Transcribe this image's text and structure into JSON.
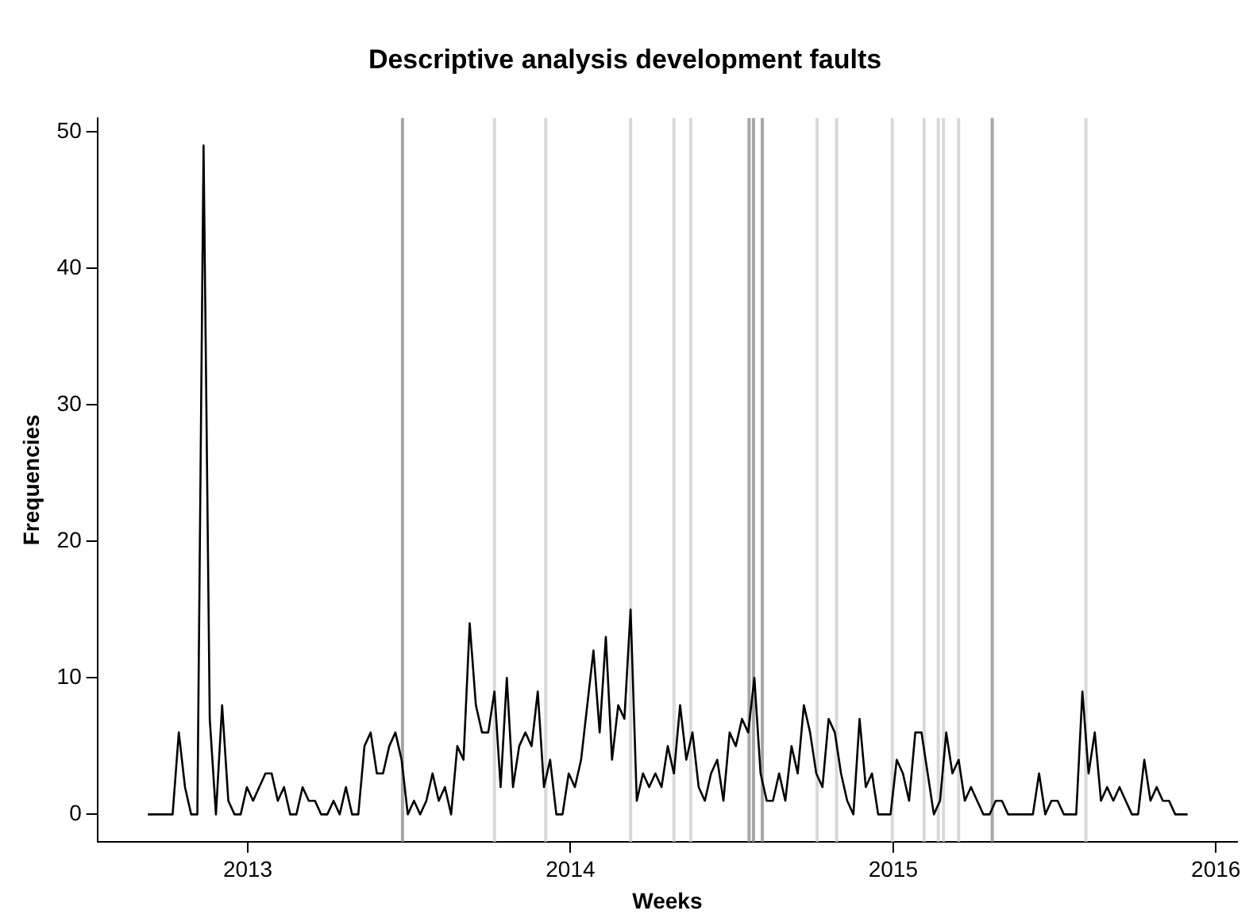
{
  "chart_data": {
    "type": "line",
    "title": "Descriptive analysis development faults",
    "xlabel": "Weeks",
    "ylabel": "Frequencies",
    "x": [
      "2012-09-10",
      "2012-09-17",
      "2012-09-24",
      "2012-10-01",
      "2012-10-08",
      "2012-10-15",
      "2012-10-22",
      "2012-10-29",
      "2012-11-05",
      "2012-11-12",
      "2012-11-19",
      "2012-11-26",
      "2012-12-03",
      "2012-12-10",
      "2012-12-17",
      "2012-12-24",
      "2012-12-31",
      "2013-01-07",
      "2013-01-14",
      "2013-01-21",
      "2013-01-28",
      "2013-02-04",
      "2013-02-11",
      "2013-02-18",
      "2013-02-25",
      "2013-03-04",
      "2013-03-11",
      "2013-03-18",
      "2013-03-25",
      "2013-04-01",
      "2013-04-08",
      "2013-04-15",
      "2013-04-22",
      "2013-04-29",
      "2013-05-06",
      "2013-05-13",
      "2013-05-20",
      "2013-05-27",
      "2013-06-03",
      "2013-06-10",
      "2013-06-17",
      "2013-06-24",
      "2013-07-01",
      "2013-07-08",
      "2013-07-15",
      "2013-07-22",
      "2013-07-29",
      "2013-08-05",
      "2013-08-12",
      "2013-08-19",
      "2013-08-26",
      "2013-09-02",
      "2013-09-09",
      "2013-09-16",
      "2013-09-23",
      "2013-09-30",
      "2013-10-07",
      "2013-10-14",
      "2013-10-21",
      "2013-10-28",
      "2013-11-04",
      "2013-11-11",
      "2013-11-18",
      "2013-11-25",
      "2013-12-02",
      "2013-12-09",
      "2013-12-16",
      "2013-12-23",
      "2013-12-30",
      "2014-01-06",
      "2014-01-13",
      "2014-01-20",
      "2014-01-27",
      "2014-02-03",
      "2014-02-10",
      "2014-02-17",
      "2014-02-24",
      "2014-03-03",
      "2014-03-10",
      "2014-03-17",
      "2014-03-24",
      "2014-03-31",
      "2014-04-07",
      "2014-04-14",
      "2014-04-21",
      "2014-04-28",
      "2014-05-05",
      "2014-05-12",
      "2014-05-19",
      "2014-05-26",
      "2014-06-02",
      "2014-06-09",
      "2014-06-16",
      "2014-06-23",
      "2014-06-30",
      "2014-07-07",
      "2014-07-14",
      "2014-07-21",
      "2014-07-28",
      "2014-08-04",
      "2014-08-11",
      "2014-08-18",
      "2014-08-25",
      "2014-09-01",
      "2014-09-08",
      "2014-09-15",
      "2014-09-22",
      "2014-09-29",
      "2014-10-06",
      "2014-10-13",
      "2014-10-20",
      "2014-10-27",
      "2014-11-03",
      "2014-11-10",
      "2014-11-17",
      "2014-11-24",
      "2014-12-01",
      "2014-12-08",
      "2014-12-15",
      "2014-12-22",
      "2014-12-29",
      "2015-01-05",
      "2015-01-12",
      "2015-01-19",
      "2015-01-26",
      "2015-02-02",
      "2015-02-09",
      "2015-02-16",
      "2015-02-23",
      "2015-03-02",
      "2015-03-09",
      "2015-03-16",
      "2015-03-23",
      "2015-03-30",
      "2015-04-06",
      "2015-04-13",
      "2015-04-20",
      "2015-04-27",
      "2015-05-04",
      "2015-05-11",
      "2015-05-18",
      "2015-05-25",
      "2015-06-01",
      "2015-06-08",
      "2015-06-15",
      "2015-06-22",
      "2015-06-29",
      "2015-07-06",
      "2015-07-13",
      "2015-07-20",
      "2015-07-27",
      "2015-08-03",
      "2015-08-10",
      "2015-08-17",
      "2015-08-24",
      "2015-08-31",
      "2015-09-07",
      "2015-09-14",
      "2015-09-21",
      "2015-09-28",
      "2015-10-05",
      "2015-10-12",
      "2015-10-19",
      "2015-10-26",
      "2015-11-02",
      "2015-11-09",
      "2015-11-16",
      "2015-11-23",
      "2015-11-30"
    ],
    "values": [
      0,
      0,
      0,
      0,
      0,
      6,
      2,
      0,
      0,
      49,
      7,
      0,
      8,
      1,
      0,
      0,
      2,
      1,
      2,
      3,
      3,
      1,
      2,
      0,
      0,
      2,
      1,
      1,
      0,
      0,
      1,
      0,
      2,
      0,
      0,
      5,
      6,
      3,
      3,
      5,
      6,
      4,
      0,
      1,
      0,
      1,
      3,
      1,
      2,
      0,
      5,
      4,
      14,
      8,
      6,
      6,
      9,
      2,
      10,
      2,
      5,
      6,
      5,
      9,
      2,
      4,
      0,
      0,
      3,
      2,
      4,
      8,
      12,
      6,
      13,
      4,
      8,
      7,
      15,
      1,
      3,
      2,
      3,
      2,
      5,
      3,
      8,
      4,
      6,
      2,
      1,
      3,
      4,
      1,
      6,
      5,
      7,
      6,
      10,
      3,
      1,
      1,
      3,
      1,
      5,
      3,
      8,
      6,
      3,
      2,
      7,
      6,
      3,
      1,
      0,
      7,
      2,
      3,
      0,
      0,
      0,
      4,
      3,
      1,
      6,
      6,
      3,
      0,
      1,
      6,
      3,
      4,
      1,
      2,
      1,
      0,
      0,
      1,
      1,
      0,
      0,
      0,
      0,
      0,
      3,
      0,
      1,
      1,
      0,
      0,
      0,
      9,
      3,
      6,
      1,
      2,
      1,
      2,
      1,
      0,
      0,
      4,
      1,
      2,
      1,
      1,
      0,
      0,
      0
    ],
    "color": "#000000",
    "marker": "none",
    "line_style": "solid",
    "grid": false,
    "legend": false,
    "xlim": [
      "2012-07-15",
      "2016-01-25"
    ],
    "xticks": [
      "2013",
      "2014",
      "2015",
      "2016"
    ],
    "ylim": [
      -2,
      51
    ],
    "yticks": [
      0,
      10,
      20,
      30,
      40,
      50
    ],
    "ref_lines": [
      {
        "axis": "x",
        "value": "2013-06-25",
        "color": "#a6a6a6"
      },
      {
        "axis": "x",
        "value": "2013-10-07",
        "color": "#d9d9d9"
      },
      {
        "axis": "x",
        "value": "2013-12-04",
        "color": "#d9d9d9"
      },
      {
        "axis": "x",
        "value": "2014-03-10",
        "color": "#d9d9d9"
      },
      {
        "axis": "x",
        "value": "2014-04-28",
        "color": "#d9d9d9"
      },
      {
        "axis": "x",
        "value": "2014-05-17",
        "color": "#d9d9d9"
      },
      {
        "axis": "x",
        "value": "2014-07-22",
        "color": "#a6a6a6"
      },
      {
        "axis": "x",
        "value": "2014-07-27",
        "color": "#a6a6a6"
      },
      {
        "axis": "x",
        "value": "2014-08-06",
        "color": "#a6a6a6"
      },
      {
        "axis": "x",
        "value": "2014-10-07",
        "color": "#d9d9d9"
      },
      {
        "axis": "x",
        "value": "2014-10-29",
        "color": "#d9d9d9"
      },
      {
        "axis": "x",
        "value": "2014-12-31",
        "color": "#d9d9d9"
      },
      {
        "axis": "x",
        "value": "2015-02-05",
        "color": "#d9d9d9"
      },
      {
        "axis": "x",
        "value": "2015-02-21",
        "color": "#d9d9d9"
      },
      {
        "axis": "x",
        "value": "2015-02-27",
        "color": "#d9d9d9"
      },
      {
        "axis": "x",
        "value": "2015-03-16",
        "color": "#d9d9d9"
      },
      {
        "axis": "x",
        "value": "2015-04-23",
        "color": "#a6a6a6"
      },
      {
        "axis": "x",
        "value": "2015-08-07",
        "color": "#d9d9d9"
      }
    ]
  }
}
